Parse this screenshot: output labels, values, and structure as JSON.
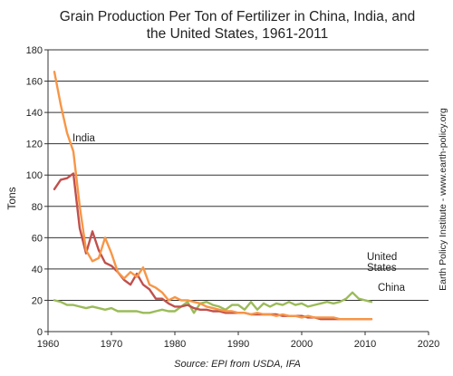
{
  "chart_data": {
    "type": "line",
    "title_line1": "Grain Production Per Ton of Fertilizer in China, India, and",
    "title_line2": "the United States, 1961-2011",
    "ylabel": "Tons",
    "xlabel": "",
    "xlim": [
      1960,
      2020
    ],
    "ylim": [
      0,
      180
    ],
    "x_ticks": [
      1960,
      1970,
      1980,
      1990,
      2000,
      2010,
      2020
    ],
    "y_ticks": [
      0,
      20,
      40,
      60,
      80,
      100,
      120,
      140,
      160,
      180
    ],
    "grid": "horizontal",
    "source": "Source: EPI from USDA, IFA",
    "credit": "Earth Policy Institute - www.earth-policy.org",
    "series": [
      {
        "name": "India",
        "color": "#f79646",
        "x": [
          1961,
          1962,
          1963,
          1964,
          1965,
          1966,
          1967,
          1968,
          1969,
          1970,
          1971,
          1972,
          1973,
          1974,
          1975,
          1976,
          1977,
          1978,
          1979,
          1980,
          1981,
          1982,
          1983,
          1984,
          1985,
          1986,
          1987,
          1988,
          1989,
          1990,
          1991,
          1992,
          1993,
          1994,
          1995,
          1996,
          1997,
          1998,
          1999,
          2000,
          2001,
          2002,
          2003,
          2004,
          2005,
          2006,
          2007,
          2008,
          2009,
          2010,
          2011
        ],
        "values": [
          166,
          145,
          127,
          115,
          80,
          52,
          45,
          47,
          60,
          50,
          38,
          34,
          38,
          35,
          41,
          30,
          28,
          25,
          20,
          22,
          20,
          20,
          19,
          18,
          16,
          15,
          14,
          13,
          13,
          12,
          12,
          11,
          12,
          11,
          11,
          10,
          11,
          10,
          10,
          9,
          10,
          9,
          9,
          9,
          9,
          8,
          8,
          8,
          8,
          8,
          8
        ]
      },
      {
        "name": "China",
        "color": "#c0504d",
        "x": [
          1961,
          1962,
          1963,
          1964,
          1965,
          1966,
          1967,
          1968,
          1969,
          1970,
          1971,
          1972,
          1973,
          1974,
          1975,
          1976,
          1977,
          1978,
          1979,
          1980,
          1981,
          1982,
          1983,
          1984,
          1985,
          1986,
          1987,
          1988,
          1989,
          1990,
          1991,
          1992,
          1993,
          1994,
          1995,
          1996,
          1997,
          1998,
          1999,
          2000,
          2001,
          2002,
          2003,
          2004,
          2005,
          2006,
          2007,
          2008,
          2009,
          2010,
          2011
        ],
        "values": [
          91,
          97,
          98,
          101,
          66,
          50,
          64,
          52,
          44,
          42,
          38,
          33,
          30,
          37,
          30,
          27,
          21,
          21,
          18,
          16,
          16,
          17,
          15,
          14,
          14,
          13,
          13,
          12,
          12,
          12,
          12,
          11,
          11,
          11,
          11,
          11,
          10,
          10,
          10,
          10,
          9,
          9,
          8,
          8,
          8,
          8,
          8,
          8,
          8,
          8,
          8
        ]
      },
      {
        "name": "United States",
        "label_line1": "United",
        "label_line2": "States",
        "color": "#9bbb59",
        "x": [
          1961,
          1962,
          1963,
          1964,
          1965,
          1966,
          1967,
          1968,
          1969,
          1970,
          1971,
          1972,
          1973,
          1974,
          1975,
          1976,
          1977,
          1978,
          1979,
          1980,
          1981,
          1982,
          1983,
          1984,
          1985,
          1986,
          1987,
          1988,
          1989,
          1990,
          1991,
          1992,
          1993,
          1994,
          1995,
          1996,
          1997,
          1998,
          1999,
          2000,
          2001,
          2002,
          2003,
          2004,
          2005,
          2006,
          2007,
          2008,
          2009,
          2010,
          2011
        ],
        "values": [
          20,
          19,
          17,
          17,
          16,
          15,
          16,
          15,
          14,
          15,
          13,
          13,
          13,
          13,
          12,
          12,
          13,
          14,
          13,
          13,
          16,
          19,
          12,
          18,
          19,
          17,
          16,
          14,
          17,
          17,
          14,
          19,
          14,
          18,
          16,
          18,
          17,
          19,
          17,
          18,
          16,
          17,
          18,
          19,
          18,
          19,
          21,
          25,
          21,
          20,
          19
        ]
      }
    ]
  }
}
